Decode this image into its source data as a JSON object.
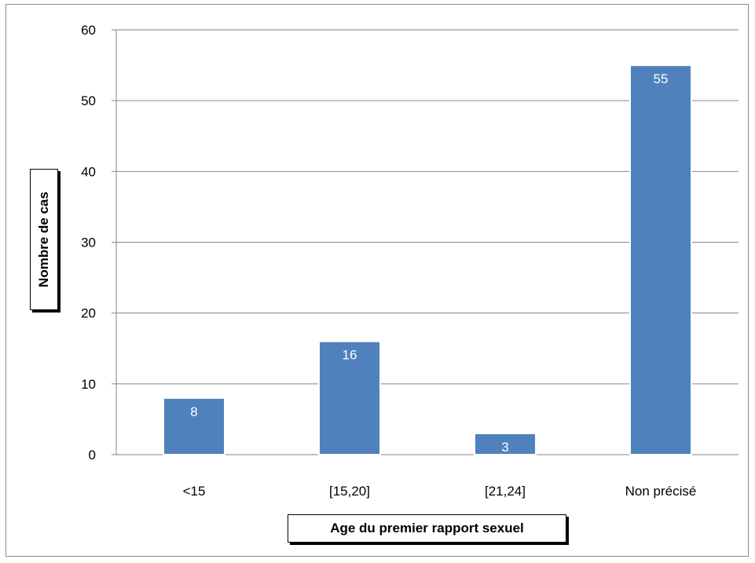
{
  "chart_data": {
    "type": "bar",
    "title": "",
    "categories": [
      "<15",
      "[15,20]",
      "[21,24]",
      "Non précisé"
    ],
    "values": [
      8,
      16,
      3,
      55
    ],
    "data_labels": [
      "8",
      "16",
      "3",
      "55"
    ],
    "xlabel": "Age du premier rapport sexuel",
    "ylabel": "Nombre de cas",
    "ylim": [
      0,
      60
    ],
    "yticks": [
      0,
      10,
      20,
      30,
      40,
      50,
      60
    ],
    "ytick_labels": [
      "0",
      "10",
      "20",
      "30",
      "40",
      "50",
      "60"
    ],
    "grid": true,
    "legend": "none",
    "bar_color": "#4f81bd",
    "label_color": "#ffffff"
  }
}
